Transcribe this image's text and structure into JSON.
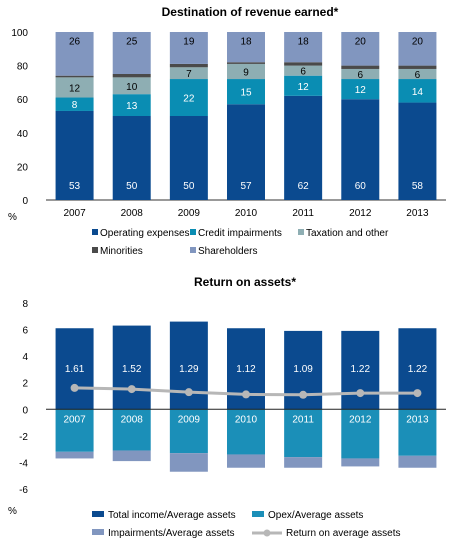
{
  "colors": {
    "operating": "#0b4a8f",
    "credit": "#0a8db3",
    "taxation": "#8eaeb3",
    "minorities": "#4a4a4a",
    "shareholders": "#8196bf",
    "total_income": "#0b4a8f",
    "opex": "#1b8fb8",
    "impairments": "#8196bf",
    "roa_line": "#b7b7b7"
  },
  "chart_data": [
    {
      "type": "bar",
      "stacked": true,
      "title": "Destination of revenue earned*",
      "ylabel": "%",
      "ylim": [
        0,
        100
      ],
      "yticks": [
        0,
        20,
        40,
        60,
        80,
        100
      ],
      "categories": [
        "2007",
        "2008",
        "2009",
        "2010",
        "2011",
        "2012",
        "2013"
      ],
      "series": [
        {
          "name": "Operating expenses",
          "values": [
            53,
            50,
            50,
            57,
            62,
            60,
            58
          ]
        },
        {
          "name": "Credit impairments",
          "values": [
            8,
            13,
            22,
            15,
            12,
            12,
            14
          ]
        },
        {
          "name": "Taxation and other",
          "values": [
            12,
            10,
            7,
            9,
            6,
            6,
            6
          ]
        },
        {
          "name": "Minorities",
          "values": [
            1,
            2,
            2,
            1,
            2,
            2,
            2
          ]
        },
        {
          "name": "Shareholders",
          "values": [
            26,
            25,
            19,
            18,
            18,
            20,
            20
          ]
        }
      ],
      "legend": {
        "position": "bottom"
      },
      "grid": false
    },
    {
      "type": "bar",
      "title": "Return on assets*",
      "ylabel": "%",
      "ylim": [
        -6,
        8
      ],
      "yticks": [
        -6,
        -4,
        -2,
        0,
        2,
        4,
        6,
        8
      ],
      "categories": [
        "2007",
        "2008",
        "2009",
        "2010",
        "2011",
        "2012",
        "2013"
      ],
      "series": [
        {
          "name": "Total income/Average assets",
          "type": "bar",
          "values": [
            6.1,
            6.3,
            6.6,
            6.1,
            5.9,
            5.9,
            6.1
          ]
        },
        {
          "name": "Opex/Average assets",
          "type": "bar",
          "values": [
            -3.2,
            -3.1,
            -3.3,
            -3.4,
            -3.6,
            -3.7,
            -3.5
          ]
        },
        {
          "name": "Impairments/Average assets",
          "type": "bar",
          "values": [
            -0.5,
            -0.8,
            -1.4,
            -1.0,
            -0.8,
            -0.6,
            -0.9
          ]
        },
        {
          "name": "Return on average assets",
          "type": "line",
          "values": [
            1.61,
            1.52,
            1.29,
            1.12,
            1.09,
            1.22,
            1.22
          ]
        }
      ],
      "data_labels": [
        "1.61",
        "1.52",
        "1.29",
        "1.12",
        "1.09",
        "1.22",
        "1.22"
      ],
      "legend": {
        "position": "bottom"
      },
      "grid": false
    }
  ]
}
